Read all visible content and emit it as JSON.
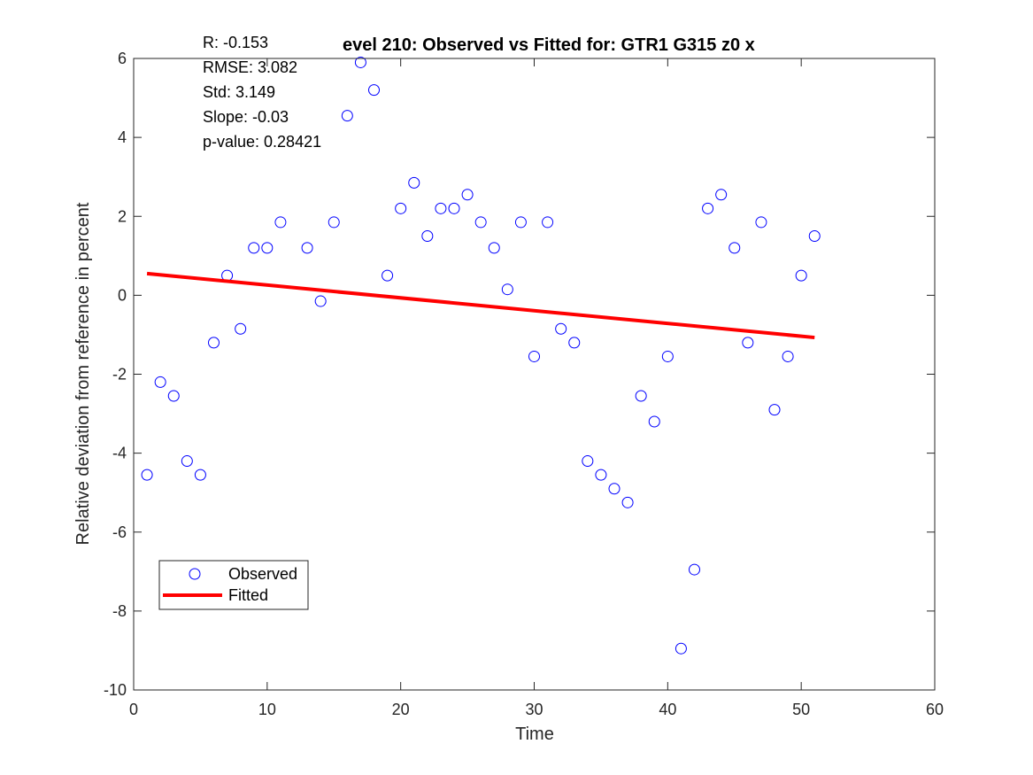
{
  "chart_data": {
    "type": "scatter",
    "title": "Level 210: Observed vs Fitted for: GTR1 G315 z0 x",
    "title_visible": "evel 210: Observed vs Fitted for: GTR1 G315 z0 x",
    "xlabel": "Time",
    "ylabel": "Relative deviation from reference in percent",
    "xlim": [
      0,
      60
    ],
    "ylim": [
      -10,
      6
    ],
    "xticks": [
      0,
      10,
      20,
      30,
      40,
      50,
      60
    ],
    "yticks": [
      -10,
      -8,
      -6,
      -4,
      -2,
      0,
      2,
      4,
      6
    ],
    "grid": false,
    "legend_position": "bottom-left",
    "stats": [
      "R: -0.153",
      "RMSE: 3.082",
      "Std: 3.149",
      "Slope: -0.03",
      "p-value: 0.28421"
    ],
    "series": [
      {
        "name": "Observed",
        "style": "markers",
        "color": "#0000ff",
        "points": [
          [
            1,
            -4.55
          ],
          [
            2,
            -2.2
          ],
          [
            3,
            -2.55
          ],
          [
            4,
            -4.2
          ],
          [
            5,
            -4.55
          ],
          [
            6,
            -1.2
          ],
          [
            7,
            0.5
          ],
          [
            8,
            -0.85
          ],
          [
            9,
            1.2
          ],
          [
            10,
            1.2
          ],
          [
            11,
            1.85
          ],
          [
            13,
            1.2
          ],
          [
            14,
            -0.15
          ],
          [
            15,
            1.85
          ],
          [
            16,
            4.55
          ],
          [
            17,
            5.9
          ],
          [
            18,
            5.2
          ],
          [
            19,
            0.5
          ],
          [
            20,
            2.2
          ],
          [
            21,
            2.85
          ],
          [
            22,
            1.5
          ],
          [
            23,
            2.2
          ],
          [
            24,
            2.2
          ],
          [
            25,
            2.55
          ],
          [
            26,
            1.85
          ],
          [
            27,
            1.2
          ],
          [
            28,
            0.15
          ],
          [
            29,
            1.85
          ],
          [
            30,
            -1.55
          ],
          [
            31,
            1.85
          ],
          [
            32,
            -0.85
          ],
          [
            33,
            -1.2
          ],
          [
            34,
            -4.2
          ],
          [
            35,
            -4.55
          ],
          [
            36,
            -4.9
          ],
          [
            37,
            -5.25
          ],
          [
            38,
            -2.55
          ],
          [
            39,
            -3.2
          ],
          [
            40,
            -1.55
          ],
          [
            41,
            -8.95
          ],
          [
            42,
            -6.95
          ],
          [
            43,
            2.2
          ],
          [
            44,
            2.55
          ],
          [
            45,
            1.2
          ],
          [
            46,
            -1.2
          ],
          [
            47,
            1.85
          ],
          [
            48,
            -2.9
          ],
          [
            49,
            -1.55
          ],
          [
            50,
            0.5
          ],
          [
            51,
            1.5
          ]
        ]
      },
      {
        "name": "Fitted",
        "style": "line",
        "color": "#ff0000",
        "points": [
          [
            1,
            0.55
          ],
          [
            51,
            -1.07
          ]
        ]
      }
    ]
  }
}
